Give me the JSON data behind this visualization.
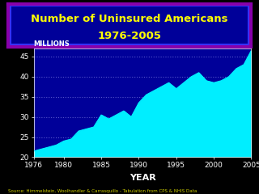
{
  "title_line1": "Number of Uninsured Americans",
  "title_line2": "1976-2005",
  "xlabel": "YEAR",
  "ylabel": "MILLIONS",
  "source_text": "Source: Himmelstein, Woolhandler & Carrasquillo - Tabulation from CPS & NHIS Data",
  "background_color": "#000000",
  "title_box_fill": "#000099",
  "title_box_edge_outer": "#8800aa",
  "title_box_edge_inner": "#3333ff",
  "title_text_color": "#ffff00",
  "chart_bg_color": "#000099",
  "fill_color": "#00eeff",
  "line_color": "#00eeff",
  "axis_text_color": "#ffffff",
  "grid_color": "#5555cc",
  "ylabel_color": "#ffffff",
  "source_color": "#cccc00",
  "ylim": [
    20,
    47
  ],
  "yticks": [
    20,
    25,
    30,
    35,
    40,
    45
  ],
  "xticks": [
    1976,
    1980,
    1985,
    1990,
    1995,
    2000,
    2005
  ],
  "years": [
    1976,
    1977,
    1978,
    1979,
    1980,
    1981,
    1982,
    1983,
    1984,
    1985,
    1986,
    1987,
    1988,
    1989,
    1990,
    1991,
    1992,
    1993,
    1994,
    1995,
    1996,
    1997,
    1998,
    1999,
    2000,
    2001,
    2002,
    2003,
    2004,
    2005
  ],
  "values": [
    21.5,
    22.0,
    22.5,
    23.0,
    24.0,
    24.5,
    26.5,
    27.0,
    27.5,
    30.5,
    29.5,
    30.5,
    31.5,
    30.0,
    33.5,
    35.5,
    36.5,
    37.5,
    38.5,
    37.0,
    38.5,
    40.0,
    41.0,
    39.0,
    38.5,
    39.0,
    40.0,
    42.0,
    43.0,
    46.5
  ]
}
